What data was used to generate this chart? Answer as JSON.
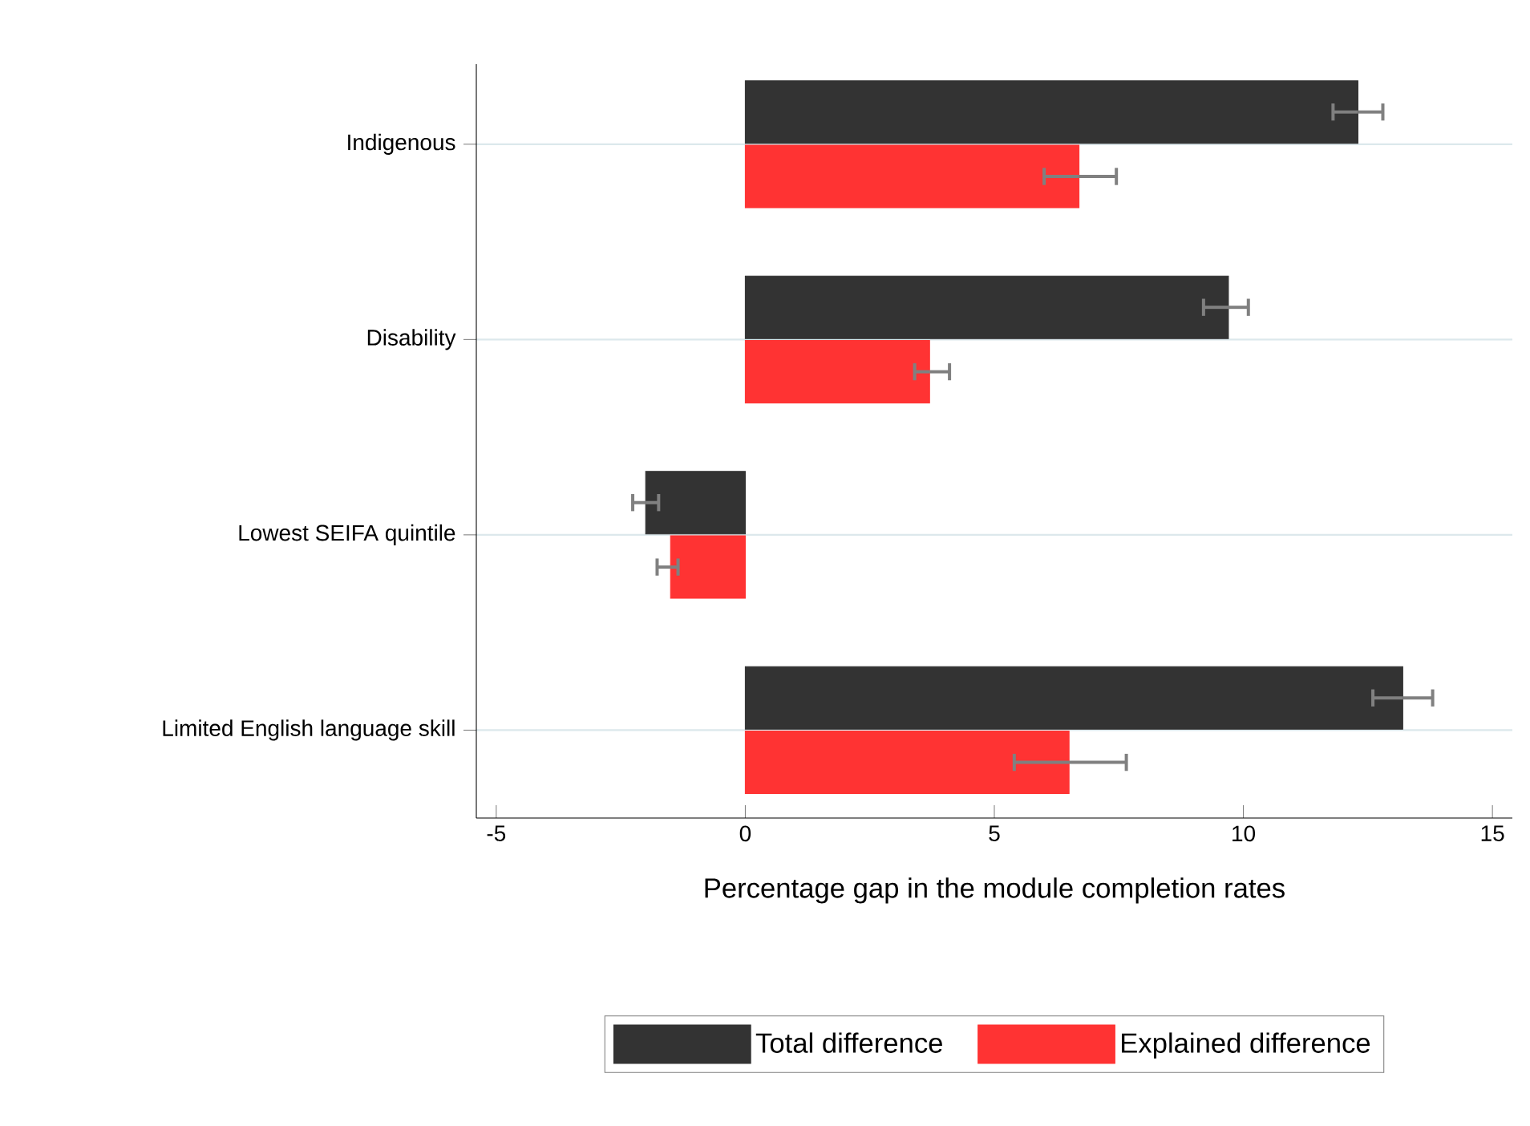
{
  "chart_data": {
    "type": "bar",
    "orientation": "horizontal",
    "xlabel": "Percentage gap in the module completion rates",
    "categories": [
      "Indigenous",
      "Disability",
      "Lowest SEIFA quintile",
      "Limited English language skill"
    ],
    "series": [
      {
        "name": "Total difference",
        "color": "#333333",
        "values": [
          12.3,
          9.7,
          -2.0,
          13.2
        ],
        "errors": [
          [
            11.8,
            12.8
          ],
          [
            9.2,
            10.1
          ],
          [
            -2.26,
            -1.74
          ],
          [
            12.6,
            13.8
          ]
        ]
      },
      {
        "name": "Explained difference",
        "color": "#ff3333",
        "values": [
          6.7,
          3.7,
          -1.5,
          6.5
        ],
        "errors": [
          [
            6.0,
            7.45
          ],
          [
            3.4,
            4.1
          ],
          [
            -1.77,
            -1.35
          ],
          [
            5.4,
            7.65
          ]
        ]
      }
    ],
    "xlim": [
      -5.4,
      15.4
    ],
    "xticks": [
      -5,
      0,
      5,
      10,
      15
    ],
    "grid": "y",
    "legend": "bottom"
  }
}
